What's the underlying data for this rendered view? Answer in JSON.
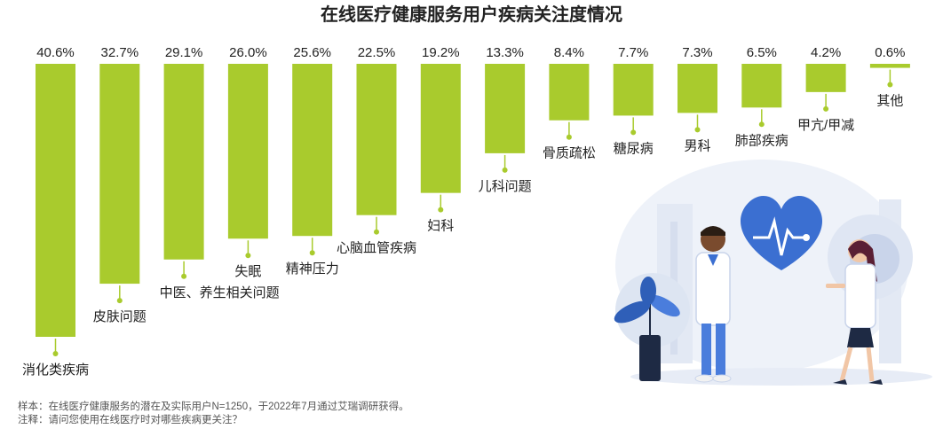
{
  "chart_data": {
    "type": "bar",
    "title": "在线医疗健康服务用户疾病关注度情况",
    "categories": [
      "消化类疾病",
      "皮肤问题",
      "中医、养生相关问题",
      "失眠",
      "精神压力",
      "心脑血管疾病",
      "妇科",
      "儿科问题",
      "骨质疏松",
      "糖尿病",
      "男科",
      "肺部疾病",
      "甲亢/甲减",
      "其他"
    ],
    "values": [
      40.6,
      32.7,
      29.1,
      26.0,
      25.6,
      22.5,
      19.2,
      13.3,
      8.4,
      7.7,
      7.3,
      6.5,
      4.2,
      0.6
    ],
    "value_labels": [
      "40.6%",
      "32.7%",
      "29.1%",
      "26.0%",
      "25.6%",
      "22.5%",
      "19.2%",
      "13.3%",
      "8.4%",
      "7.7%",
      "7.3%",
      "6.5%",
      "4.2%",
      "0.6%"
    ],
    "unit": "%",
    "orientation": "vertical-hanging",
    "ylim": [
      0,
      40.6
    ],
    "grid": false,
    "legend": "none",
    "bar_color": "#a9cb2d"
  },
  "notes": {
    "sample": "样本：在线医疗健康服务的潜在及实际用户N=1250，于2022年7月通过艾瑞调研获得。",
    "remark": "注释：请问您使用在线医疗时对哪些疾病更关注？"
  }
}
